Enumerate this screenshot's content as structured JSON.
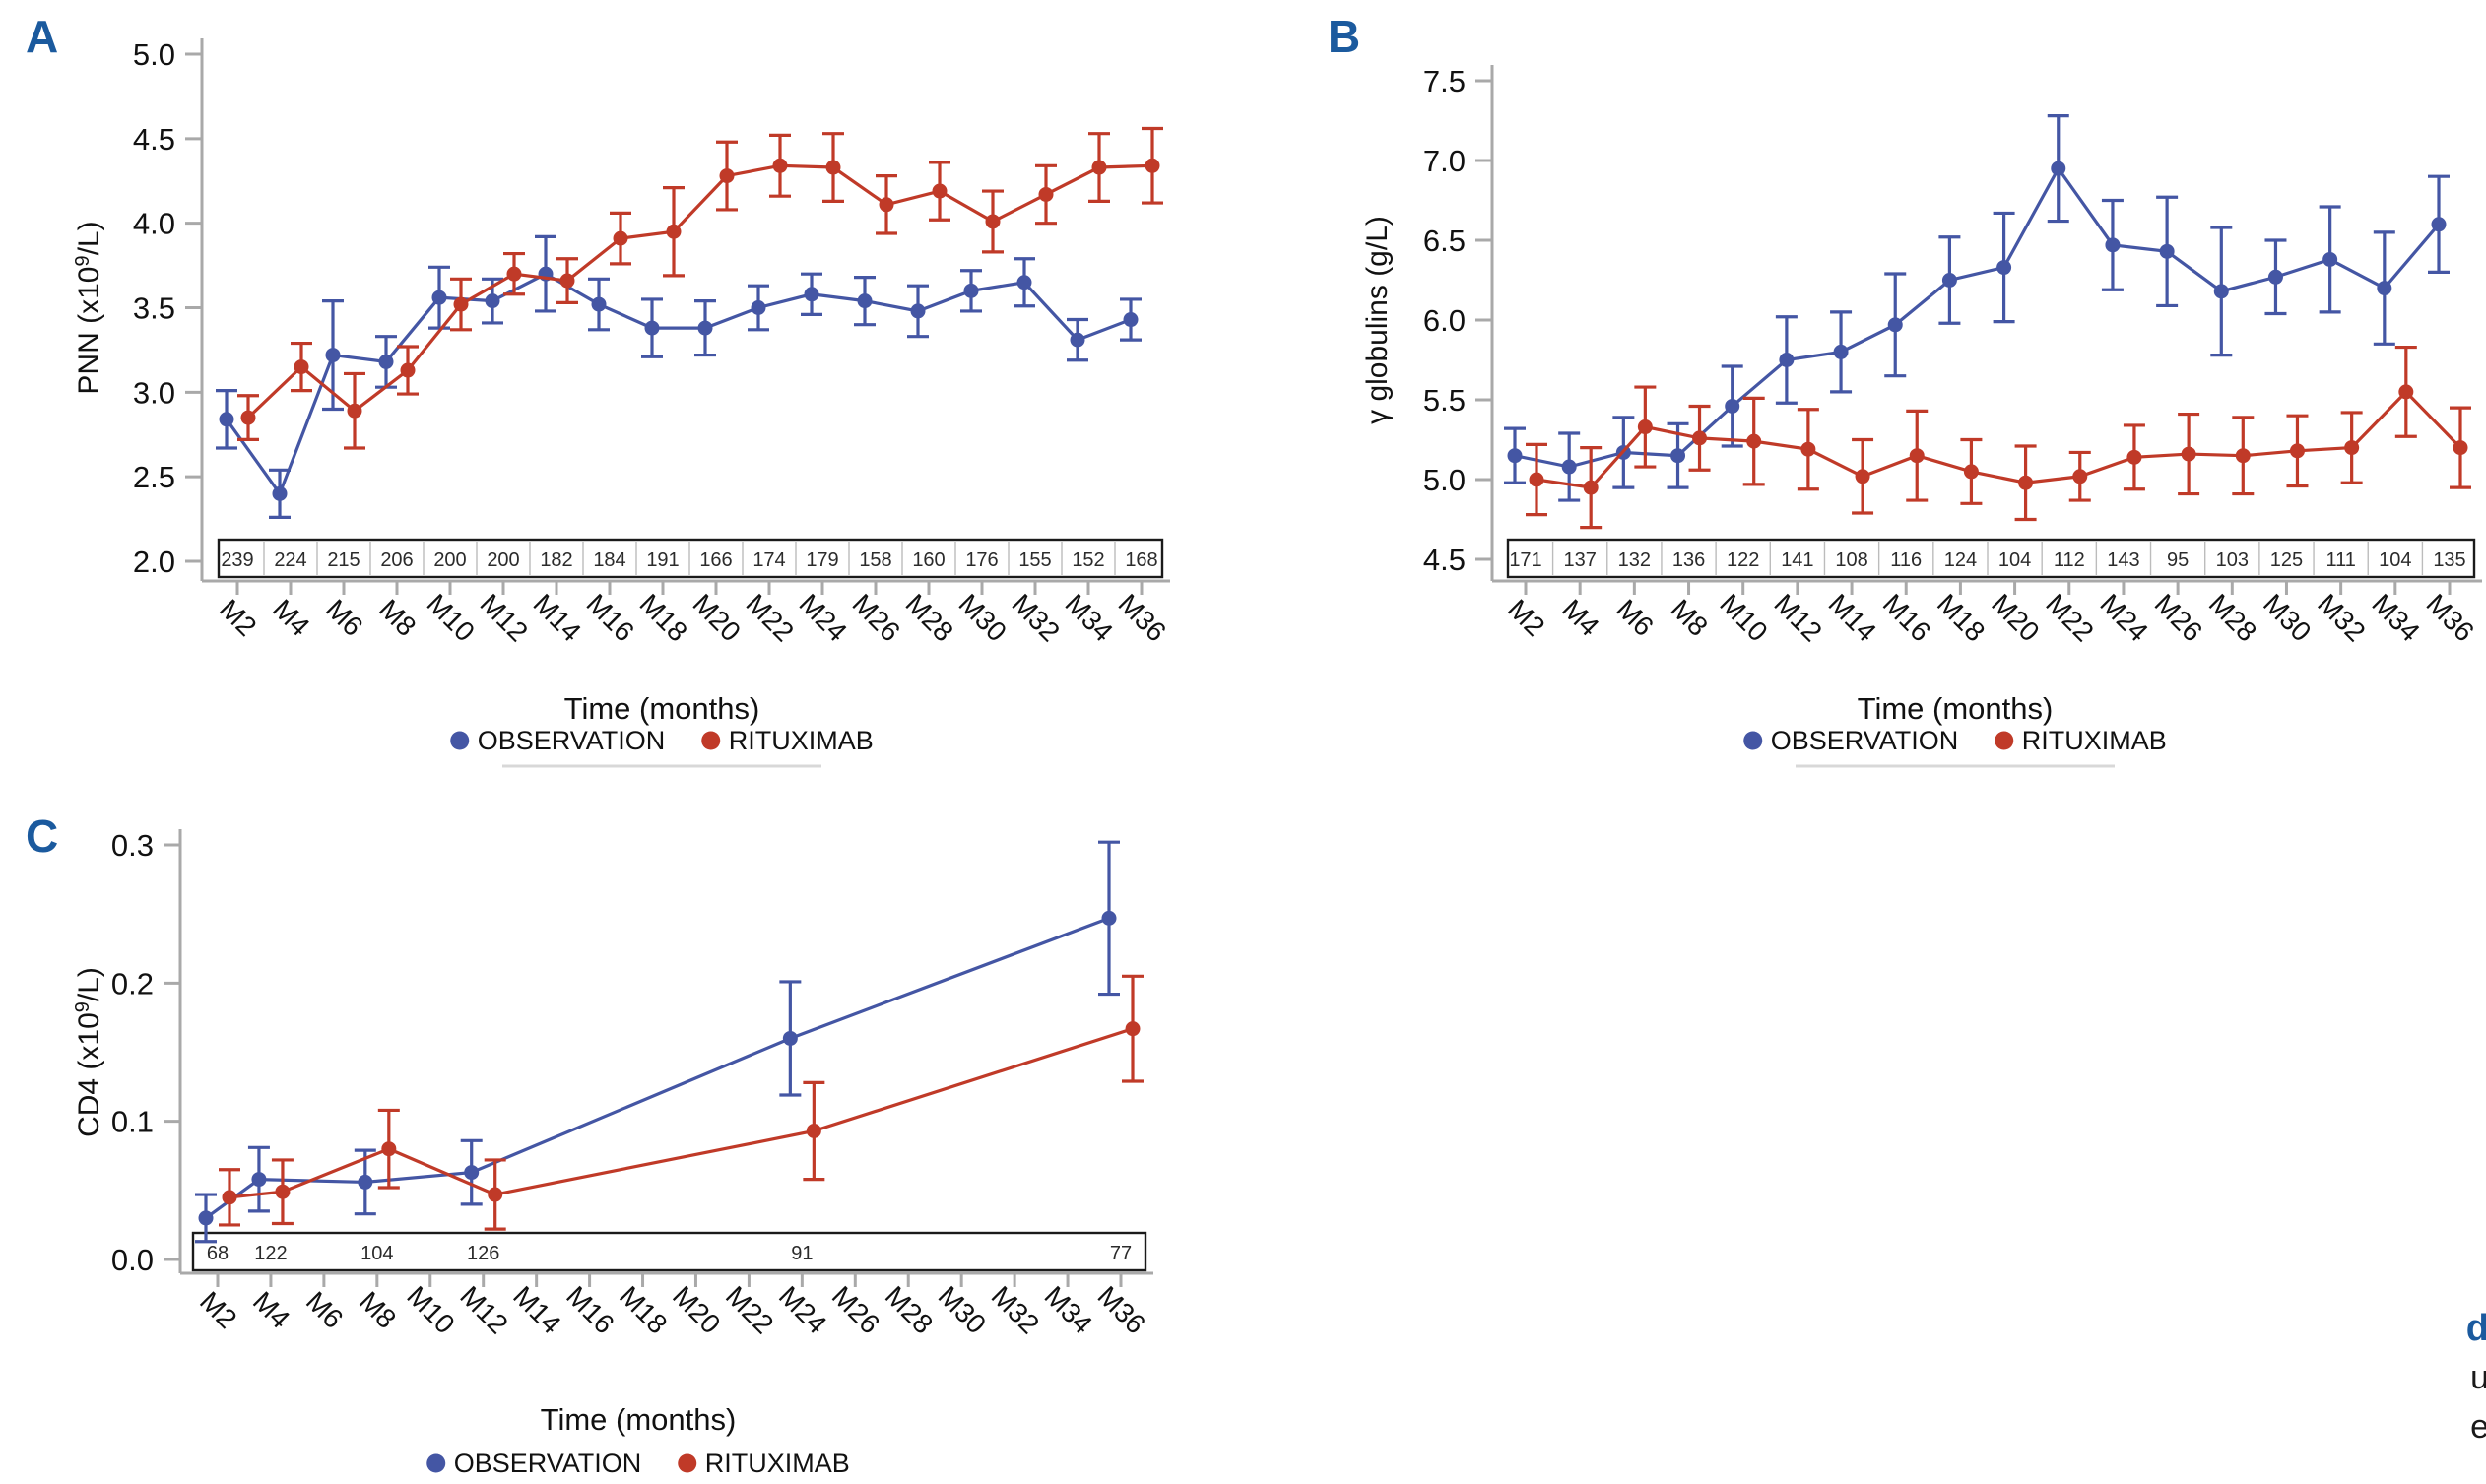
{
  "figure": {
    "xlabel": "Time (months)",
    "legend_labels": [
      "OBSERVATION",
      "RITUXIMAB"
    ],
    "corner_fragments": [
      "d",
      "u",
      "e"
    ]
  },
  "colors": {
    "observation": "#4456a4",
    "rituximab": "#c03a28",
    "panel_label": "#1b5a9e",
    "axis": "#a9a9a9",
    "text": "#111111",
    "counts_text": "#2b2b2b",
    "counts_border": "#1a1a1a",
    "counts_divider": "#bcbcbc",
    "legend_rule": "#d8d8d8"
  },
  "chart_data": [
    {
      "id": "A",
      "panel_label": "A",
      "type": "line",
      "ylabel": {
        "pre": "PNN (x10",
        "sup": "9",
        "post": "/L)"
      },
      "xlabel": "Time (months)",
      "ylim": [
        2.0,
        5.0
      ],
      "yticks": [
        "2.0",
        "2.5",
        "3.0",
        "3.5",
        "4.0",
        "4.5",
        "5.0"
      ],
      "categories": [
        "M2",
        "M4",
        "M6",
        "M8",
        "M10",
        "M12",
        "M14",
        "M16",
        "M18",
        "M20",
        "M22",
        "M24",
        "M26",
        "M28",
        "M30",
        "M32",
        "M34",
        "M36"
      ],
      "axis_months": [
        2,
        4,
        6,
        8,
        10,
        12,
        14,
        16,
        18,
        20,
        22,
        24,
        26,
        28,
        30,
        32,
        34,
        36
      ],
      "legend_position": "bottom",
      "grid": false,
      "series": [
        {
          "name": "OBSERVATION",
          "color": "#4456a4",
          "months": [
            2,
            4,
            6,
            8,
            10,
            12,
            14,
            16,
            18,
            20,
            22,
            24,
            26,
            28,
            30,
            32,
            34,
            36
          ],
          "values": [
            2.84,
            2.4,
            3.22,
            3.18,
            3.56,
            3.54,
            3.7,
            3.52,
            3.38,
            3.38,
            3.5,
            3.58,
            3.54,
            3.48,
            3.6,
            3.65,
            3.31,
            3.43
          ],
          "err": [
            0.17,
            0.14,
            0.32,
            0.15,
            0.18,
            0.13,
            0.22,
            0.15,
            0.17,
            0.16,
            0.13,
            0.12,
            0.14,
            0.15,
            0.12,
            0.14,
            0.12,
            0.12
          ]
        },
        {
          "name": "RITUXIMAB",
          "color": "#c03a28",
          "months": [
            2,
            4,
            6,
            8,
            10,
            12,
            14,
            16,
            18,
            20,
            22,
            24,
            26,
            28,
            30,
            32,
            34,
            36
          ],
          "values": [
            2.85,
            3.15,
            2.89,
            3.13,
            3.52,
            3.7,
            3.66,
            3.91,
            3.95,
            4.28,
            4.34,
            4.33,
            4.11,
            4.19,
            4.01,
            4.17,
            4.33,
            4.34
          ],
          "err": [
            0.13,
            0.14,
            0.22,
            0.14,
            0.15,
            0.12,
            0.13,
            0.15,
            0.26,
            0.2,
            0.18,
            0.2,
            0.17,
            0.17,
            0.18,
            0.17,
            0.2,
            0.22
          ]
        }
      ],
      "counts": {
        "months": [
          2,
          4,
          6,
          8,
          10,
          12,
          14,
          16,
          18,
          20,
          22,
          24,
          26,
          28,
          30,
          32,
          34,
          36
        ],
        "values": [
          239,
          224,
          215,
          206,
          200,
          200,
          182,
          184,
          191,
          166,
          174,
          179,
          158,
          160,
          176,
          155,
          152,
          168
        ],
        "dividers": true
      }
    },
    {
      "id": "B",
      "panel_label": "B",
      "type": "line",
      "ylabel": {
        "pre": "γ globulins (g/L)",
        "sup": "",
        "post": ""
      },
      "xlabel": "Time (months)",
      "ylim": [
        4.5,
        7.5
      ],
      "yticks": [
        "4.5",
        "5.0",
        "5.5",
        "6.0",
        "6.5",
        "7.0",
        "7.5"
      ],
      "categories": [
        "M2",
        "M4",
        "M6",
        "M8",
        "M10",
        "M12",
        "M14",
        "M16",
        "M18",
        "M20",
        "M22",
        "M24",
        "M26",
        "M28",
        "M30",
        "M32",
        "M34",
        "M36"
      ],
      "axis_months": [
        2,
        4,
        6,
        8,
        10,
        12,
        14,
        16,
        18,
        20,
        22,
        24,
        26,
        28,
        30,
        32,
        34,
        36
      ],
      "legend_position": "bottom",
      "grid": false,
      "series": [
        {
          "name": "OBSERVATION",
          "color": "#4456a4",
          "months": [
            2,
            4,
            6,
            8,
            10,
            12,
            14,
            16,
            18,
            20,
            22,
            24,
            26,
            28,
            30,
            32,
            34,
            36
          ],
          "values": [
            5.15,
            5.08,
            5.17,
            5.15,
            5.46,
            5.75,
            5.8,
            5.97,
            6.25,
            6.33,
            6.95,
            6.47,
            6.43,
            6.18,
            6.27,
            6.38,
            6.2,
            6.6
          ],
          "err": [
            0.17,
            0.21,
            0.22,
            0.2,
            0.25,
            0.27,
            0.25,
            0.32,
            0.27,
            0.34,
            0.33,
            0.28,
            0.34,
            0.4,
            0.23,
            0.33,
            0.35,
            0.3
          ]
        },
        {
          "name": "RITUXIMAB",
          "color": "#c03a28",
          "months": [
            2,
            4,
            6,
            8,
            10,
            12,
            14,
            16,
            18,
            20,
            22,
            24,
            26,
            28,
            30,
            32,
            34,
            36
          ],
          "values": [
            5.0,
            4.95,
            5.33,
            5.26,
            5.24,
            5.19,
            5.02,
            5.15,
            5.05,
            4.98,
            5.02,
            5.14,
            5.16,
            5.15,
            5.18,
            5.2,
            5.55,
            5.2
          ],
          "err": [
            0.22,
            0.25,
            0.25,
            0.2,
            0.27,
            0.25,
            0.23,
            0.28,
            0.2,
            0.23,
            0.15,
            0.2,
            0.25,
            0.24,
            0.22,
            0.22,
            0.28,
            0.25
          ]
        }
      ],
      "counts": {
        "months": [
          2,
          4,
          6,
          8,
          10,
          12,
          14,
          16,
          18,
          20,
          22,
          24,
          26,
          28,
          30,
          32,
          34,
          36
        ],
        "values": [
          171,
          137,
          132,
          136,
          122,
          141,
          108,
          116,
          124,
          104,
          112,
          143,
          95,
          103,
          125,
          111,
          104,
          135
        ],
        "dividers": true
      }
    },
    {
      "id": "C",
      "panel_label": "C",
      "type": "line",
      "ylabel": {
        "pre": "CD4 (x10",
        "sup": "9",
        "post": "/L)"
      },
      "xlabel": "Time (months)",
      "ylim": [
        0.0,
        0.3
      ],
      "yticks": [
        "0.0",
        "0.1",
        "0.2",
        "0.3"
      ],
      "categories": [
        "M2",
        "M4",
        "M6",
        "M8",
        "M10",
        "M12",
        "M14",
        "M16",
        "M18",
        "M20",
        "M22",
        "M24",
        "M26",
        "M28",
        "M30",
        "M32",
        "M34",
        "M36"
      ],
      "axis_months": [
        2,
        4,
        6,
        8,
        10,
        12,
        14,
        16,
        18,
        20,
        22,
        24,
        26,
        28,
        30,
        32,
        34,
        36
      ],
      "legend_position": "bottom",
      "grid": false,
      "series": [
        {
          "name": "OBSERVATION",
          "color": "#4456a4",
          "months": [
            2,
            4,
            8,
            12,
            24,
            36
          ],
          "values": [
            0.03,
            0.058,
            0.056,
            0.063,
            0.16,
            0.247
          ],
          "err": [
            0.017,
            0.023,
            0.023,
            0.023,
            0.041,
            0.055
          ]
        },
        {
          "name": "RITUXIMAB",
          "color": "#c03a28",
          "months": [
            2,
            4,
            8,
            12,
            24,
            36
          ],
          "values": [
            0.045,
            0.049,
            0.08,
            0.047,
            0.093,
            0.167
          ],
          "err": [
            0.02,
            0.023,
            0.028,
            0.025,
            0.035,
            0.038
          ]
        }
      ],
      "counts": {
        "months": [
          2,
          4,
          8,
          12,
          24,
          36
        ],
        "values": [
          68,
          122,
          104,
          126,
          91,
          77
        ],
        "dividers": false
      }
    }
  ]
}
